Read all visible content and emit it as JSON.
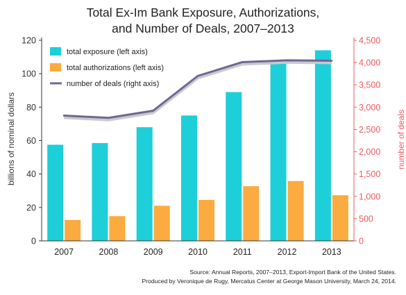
{
  "chart_data": {
    "type": "bar",
    "title_line1": "Total Ex-Im Bank Exposure, Authorizations,",
    "title_line2": "and Number of Deals, 2007–2013",
    "ylabel_left": "billions of nominal dollars",
    "ylabel_right": "number of deals",
    "categories": [
      "2007",
      "2008",
      "2009",
      "2010",
      "2011",
      "2012",
      "2013"
    ],
    "ylim_left": [
      0,
      120
    ],
    "yticks_left": [
      "0",
      "20",
      "40",
      "60",
      "80",
      "100",
      "120"
    ],
    "ylim_right": [
      0,
      4500
    ],
    "yticks_right": [
      "0",
      "500",
      "1,000",
      "1,500",
      "2,000",
      "2,500",
      "3,000",
      "3,500",
      "4,000",
      "4,500"
    ],
    "series": [
      {
        "name": "total exposure (left axis)",
        "type": "bar",
        "axis": "left",
        "color": "#1dcfd9",
        "values": [
          57.5,
          58.5,
          68,
          75,
          89,
          106.5,
          114
        ]
      },
      {
        "name": "total authorizations (left axis)",
        "type": "bar",
        "axis": "left",
        "color": "#fbab3f",
        "values": [
          12.5,
          14.8,
          21,
          24.5,
          32.7,
          35.8,
          27.3
        ]
      },
      {
        "name": "number of deals (right axis)",
        "type": "line",
        "axis": "right",
        "color": "#6e6892",
        "values": [
          2810,
          2760,
          2920,
          3700,
          4010,
          4050,
          4040
        ]
      }
    ],
    "legend_position": "top-left",
    "grid": false
  },
  "source": {
    "line1": "Source: Annual Reports, 2007–2013, Export-Import Bank of the United States.",
    "line2": "Produced by Veronique de Rugy, Mercatus Center at George Mason University, March 24, 2014."
  }
}
